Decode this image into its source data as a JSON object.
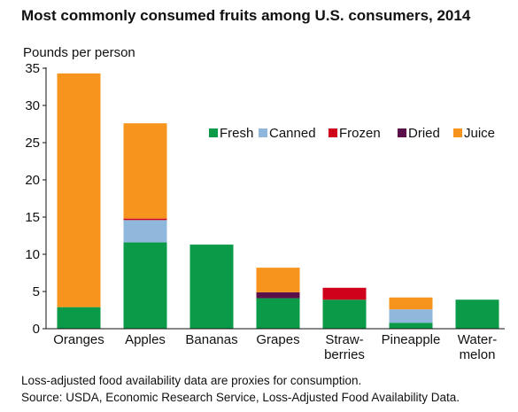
{
  "chart_data": {
    "type": "bar",
    "stacked": true,
    "title": "Most commonly consumed fruits among U.S. consumers, 2014",
    "ylabel": "Pounds per person",
    "xlabel": "",
    "ylim": [
      0,
      35
    ],
    "yticks": [
      0,
      5,
      10,
      15,
      20,
      25,
      30,
      35
    ],
    "grid": false,
    "legend_position": "top-right",
    "categories": [
      [
        "Oranges"
      ],
      [
        "Apples"
      ],
      [
        "Bananas"
      ],
      [
        "Grapes"
      ],
      [
        "Straw-",
        "berries"
      ],
      [
        "Pineapple"
      ],
      [
        "Water-",
        "melon"
      ]
    ],
    "series": [
      {
        "name": "Fresh",
        "color": "#0a9a48",
        "values": [
          2.9,
          11.6,
          11.3,
          4.1,
          3.9,
          0.8,
          3.9
        ]
      },
      {
        "name": "Canned",
        "color": "#8fb8dc",
        "values": [
          0,
          3.0,
          0,
          0,
          0,
          1.8,
          0
        ]
      },
      {
        "name": "Frozen",
        "color": "#d0021b",
        "values": [
          0,
          0.2,
          0,
          0,
          1.6,
          0,
          0
        ]
      },
      {
        "name": "Dried",
        "color": "#5c1049",
        "values": [
          0,
          0,
          0,
          0.8,
          0,
          0,
          0
        ]
      },
      {
        "name": "Juice",
        "color": "#f7941d",
        "values": [
          31.4,
          12.8,
          0,
          3.3,
          0,
          1.6,
          0
        ]
      }
    ]
  },
  "footnote": {
    "line1": "Loss-adjusted food availability data are proxies for consumption.",
    "line2": "Source: USDA, Economic Research Service, Loss-Adjusted Food Availability Data."
  }
}
